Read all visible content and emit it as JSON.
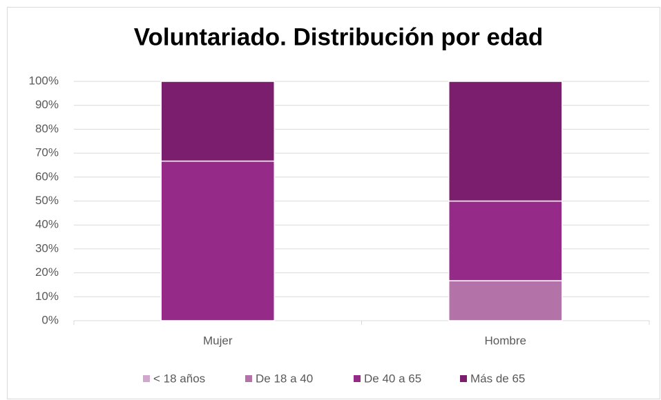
{
  "chart_data": {
    "type": "stacked_bar",
    "title": "Voluntariado. Distribución por edad",
    "categories": [
      "Mujer",
      "Hombre"
    ],
    "series": [
      {
        "name": "< 18 años",
        "color": "#d2a7cd",
        "values": [
          0,
          0
        ]
      },
      {
        "name": "De 18 a 40",
        "color": "#b373a9",
        "values": [
          0,
          16.7
        ]
      },
      {
        "name": "De 40 a 65",
        "color": "#952a89",
        "values": [
          66.7,
          33.3
        ]
      },
      {
        "name": "Más de 65",
        "color": "#7b1e6e",
        "values": [
          33.3,
          50
        ]
      }
    ],
    "ylim": [
      0,
      100
    ],
    "yticks": [
      {
        "value": 0,
        "label": "0%"
      },
      {
        "value": 10,
        "label": "10%"
      },
      {
        "value": 20,
        "label": "20%"
      },
      {
        "value": 30,
        "label": "30%"
      },
      {
        "value": 40,
        "label": "40%"
      },
      {
        "value": 50,
        "label": "50%"
      },
      {
        "value": 60,
        "label": "60%"
      },
      {
        "value": 70,
        "label": "70%"
      },
      {
        "value": 80,
        "label": "80%"
      },
      {
        "value": 90,
        "label": "90%"
      },
      {
        "value": 100,
        "label": "100%"
      }
    ],
    "grid": true,
    "legend": "bottom"
  }
}
